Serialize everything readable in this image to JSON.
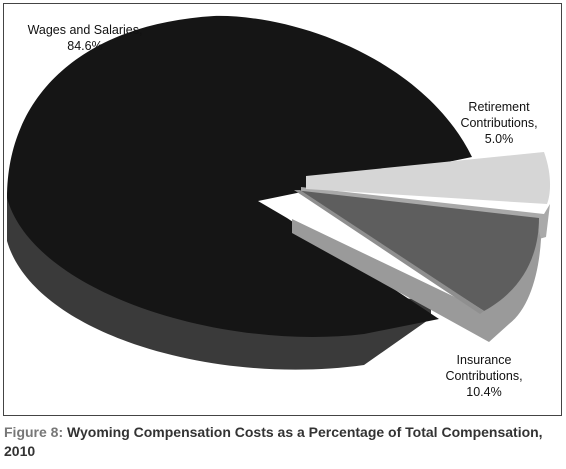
{
  "figure_label": "Figure 8:",
  "figure_title": "Wyoming Compensation Costs as a Percentage of Total Compensation, 2010",
  "chart_data": {
    "type": "pie",
    "slices": [
      {
        "label_line1": "Wages and Salaries,",
        "label_line2": "84.6%",
        "value": 84.6,
        "top_color": "#151515",
        "side_color": "#3a3a3a"
      },
      {
        "label_line1": "Retirement",
        "label_line2": "Contributions,",
        "label_line3": "5.0%",
        "value": 5.0,
        "top_color": "#d6d6d6",
        "side_color": "#a9a9a9"
      },
      {
        "label_line1": "Insurance",
        "label_line2": "Contributions,",
        "label_line3": "10.4%",
        "value": 10.4,
        "top_color": "#5e5e5e",
        "side_color": "#9a9a9a"
      }
    ],
    "style": "3d-exploded"
  }
}
